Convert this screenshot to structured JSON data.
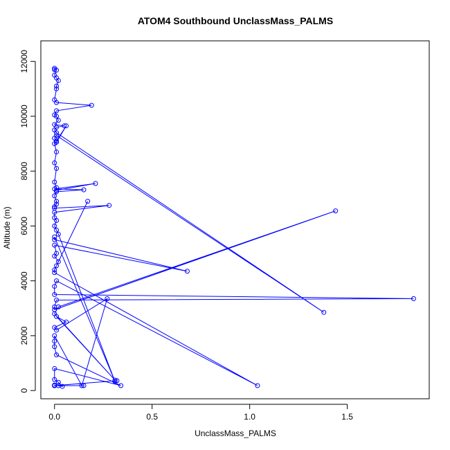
{
  "chart_data": {
    "type": "line",
    "title": "ATOM4 Southbound UnclassMass_PALMS",
    "xlabel": "UnclassMass_PALMS",
    "ylabel": "Altitude (m)",
    "xlim": [
      -0.07,
      1.92
    ],
    "ylim": [
      -300,
      12750
    ],
    "x_ticks": [
      0,
      0.5,
      1.0,
      1.5
    ],
    "x_tick_labels": [
      "0.0",
      "0.5",
      "1.0",
      "1.5"
    ],
    "y_ticks": [
      0,
      2000,
      4000,
      6000,
      8000,
      10000,
      12000
    ],
    "y_tick_labels": [
      "0",
      "2000",
      "4000",
      "6000",
      "8000",
      "10000",
      "12000"
    ],
    "grid": false,
    "legend": "none",
    "series_color": "#0000ff",
    "x": [
      0.0,
      0.0,
      0.01,
      0.0,
      0.01,
      0.02,
      0.01,
      0.01,
      0.0,
      0.01,
      0.19,
      0.01,
      0.0,
      0.01,
      0.02,
      0.0,
      0.05,
      0.01,
      0.0,
      0.01,
      1.38,
      0.01,
      0.0,
      0.01,
      0.06,
      0.01,
      0.0,
      0.01,
      0.0,
      0.01,
      0.0,
      0.01,
      0.01,
      0.21,
      0.0,
      0.15,
      0.01,
      0.0,
      0.01,
      0.01,
      0.0,
      0.0,
      0.28,
      0.0,
      0.0,
      0.01,
      0.0,
      0.01,
      0.02,
      0.31,
      0.0,
      0.0,
      0.68,
      0.0,
      0.01,
      0.0,
      0.02,
      0.17,
      0.01,
      0.0,
      0.0,
      1.04,
      0.01,
      0.0,
      0.0,
      1.84,
      0.01,
      0.0,
      0.0,
      1.44,
      0.02,
      0.0,
      0.31,
      0.01,
      0.06,
      0.0,
      0.01,
      0.27,
      0.14,
      0.0,
      0.0,
      0.0,
      0.01,
      0.34,
      0.0,
      0.0,
      0.02,
      0.04,
      0.0,
      0.0,
      0.32,
      0.0,
      0.02,
      0.15,
      0.0,
      0.0
    ],
    "y": [
      11700,
      11750,
      11680,
      11500,
      11400,
      11300,
      11100,
      11000,
      10600,
      10500,
      10400,
      10200,
      10050,
      10000,
      9850,
      9700,
      9650,
      9600,
      9500,
      9400,
      2850,
      9300,
      9200,
      9100,
      9650,
      9050,
      9000,
      8700,
      8300,
      8100,
      7600,
      7400,
      7300,
      7550,
      7350,
      7320,
      7250,
      7100,
      6900,
      6800,
      6700,
      6650,
      6750,
      6500,
      6300,
      6200,
      6000,
      5850,
      5700,
      330,
      5600,
      5500,
      4350,
      5300,
      5000,
      4900,
      4700,
      6900,
      4550,
      4400,
      4300,
      180,
      4000,
      3800,
      3500,
      3350,
      3300,
      3050,
      2950,
      6550,
      3050,
      2800,
      380,
      2700,
      2500,
      2300,
      2200,
      3350,
      180,
      2000,
      1800,
      1600,
      1300,
      180,
      800,
      400,
      300,
      150,
      200,
      180,
      360,
      180,
      180,
      180,
      180,
      180
    ]
  }
}
